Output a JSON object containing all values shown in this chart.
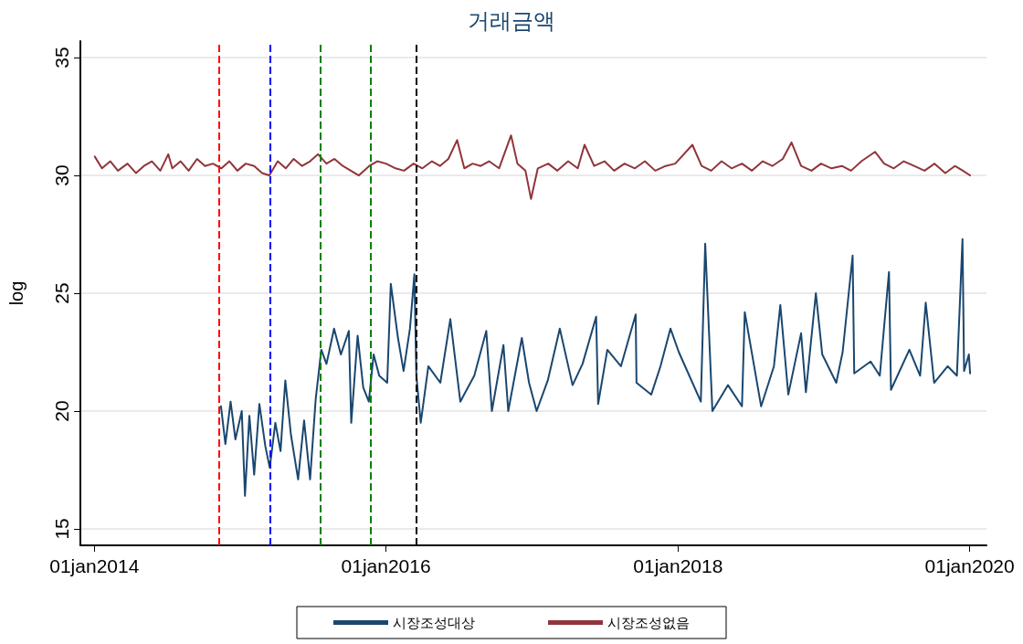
{
  "chart_data": {
    "type": "line",
    "title": "거래금액",
    "ylabel": "log",
    "legend": "bottom",
    "grid": "y",
    "marker": "none",
    "line_style": "solid",
    "xlim": [
      "2013-11-27",
      "2020-02-12"
    ],
    "ylim": [
      14.3,
      35.7
    ],
    "xticks": [
      {
        "value": "2014-01-01",
        "label": "01jan2014"
      },
      {
        "value": "2016-01-01",
        "label": "01jan2016"
      },
      {
        "value": "2018-01-01",
        "label": "01jan2018"
      },
      {
        "value": "2020-01-01",
        "label": "01jan2020"
      }
    ],
    "yticks": [
      15,
      20,
      25,
      30,
      35
    ],
    "ref_lines": [
      {
        "axis": "x",
        "value": "2014-11-10",
        "color": "#ff0000",
        "line_style": "dashed"
      },
      {
        "axis": "x",
        "value": "2015-03-16",
        "color": "#0000ff",
        "line_style": "dashed"
      },
      {
        "axis": "x",
        "value": "2015-07-21",
        "color": "#008000",
        "line_style": "dashed"
      },
      {
        "axis": "x",
        "value": "2015-11-23",
        "color": "#008000",
        "line_style": "dashed"
      },
      {
        "axis": "x",
        "value": "2016-03-16",
        "color": "#000000",
        "line_style": "dashed"
      }
    ],
    "series": [
      {
        "name": "시장조성대상",
        "color": "#1a476f",
        "x": [
          "2014-11-14",
          "2014-11-25",
          "2014-12-08",
          "2014-12-20",
          "2015-01-05",
          "2015-01-13",
          "2015-01-24",
          "2015-02-05",
          "2015-02-18",
          "2015-03-05",
          "2015-03-16",
          "2015-03-30",
          "2015-04-12",
          "2015-04-24",
          "2015-05-08",
          "2015-05-26",
          "2015-06-10",
          "2015-06-25",
          "2015-07-09",
          "2015-07-23",
          "2015-08-05",
          "2015-08-24",
          "2015-09-10",
          "2015-09-30",
          "2015-10-06",
          "2015-10-22",
          "2015-11-05",
          "2015-11-19",
          "2015-12-01",
          "2015-12-15",
          "2016-01-04",
          "2016-01-13",
          "2016-01-31",
          "2016-02-14",
          "2016-03-01",
          "2016-03-12",
          "2016-03-17",
          "2016-03-28",
          "2016-04-16",
          "2016-05-16",
          "2016-06-10",
          "2016-07-05",
          "2016-08-09",
          "2016-09-08",
          "2016-09-22",
          "2016-10-21",
          "2016-11-02",
          "2016-12-06",
          "2016-12-24",
          "2017-01-12",
          "2017-02-09",
          "2017-03-11",
          "2017-04-12",
          "2017-05-07",
          "2017-06-10",
          "2017-06-15",
          "2017-07-08",
          "2017-08-11",
          "2017-09-17",
          "2017-09-19",
          "2017-10-26",
          "2017-11-18",
          "2017-12-13",
          "2018-01-03",
          "2018-02-27",
          "2018-03-10",
          "2018-03-28",
          "2018-05-06",
          "2018-06-10",
          "2018-06-17",
          "2018-07-28",
          "2018-08-29",
          "2018-09-14",
          "2018-10-04",
          "2018-11-05",
          "2018-11-17",
          "2018-12-12",
          "2018-12-28",
          "2019-02-01",
          "2019-02-17",
          "2019-03-14",
          "2019-03-18",
          "2019-04-28",
          "2019-05-21",
          "2019-06-13",
          "2019-06-18",
          "2019-08-03",
          "2019-08-30",
          "2019-09-13",
          "2019-10-04",
          "2019-11-07",
          "2019-11-30",
          "2019-12-14",
          "2019-12-18",
          "2019-12-30",
          "2020-01-02"
        ],
        "values": [
          20.2,
          18.6,
          20.4,
          18.8,
          20.0,
          16.4,
          19.8,
          17.3,
          20.3,
          18.5,
          17.6,
          19.5,
          18.3,
          21.3,
          19.0,
          17.1,
          19.6,
          17.1,
          20.5,
          22.6,
          22.0,
          23.5,
          22.4,
          23.4,
          19.5,
          23.2,
          21.0,
          20.4,
          22.4,
          21.5,
          21.2,
          25.4,
          23.1,
          21.7,
          23.5,
          25.8,
          21.5,
          19.5,
          21.9,
          21.2,
          23.9,
          20.4,
          21.5,
          23.4,
          20.0,
          22.8,
          20.0,
          23.1,
          21.2,
          20.0,
          21.3,
          23.5,
          21.1,
          22.0,
          24.0,
          20.3,
          22.6,
          21.9,
          24.1,
          21.2,
          20.7,
          21.9,
          23.5,
          22.5,
          20.4,
          27.1,
          20.0,
          21.1,
          20.2,
          24.2,
          20.2,
          21.9,
          24.5,
          20.7,
          23.3,
          20.8,
          25.0,
          22.4,
          21.2,
          22.5,
          26.6,
          21.6,
          22.1,
          21.5,
          25.9,
          20.9,
          22.6,
          21.5,
          24.6,
          21.2,
          21.9,
          21.5,
          27.3,
          21.7,
          22.4,
          21.6
        ]
      },
      {
        "name": "시장조성없음",
        "color": "#90353b",
        "x": [
          "2014-01-02",
          "2014-01-20",
          "2014-02-10",
          "2014-03-01",
          "2014-03-25",
          "2014-04-15",
          "2014-05-05",
          "2014-05-25",
          "2014-06-15",
          "2014-07-05",
          "2014-07-15",
          "2014-08-05",
          "2014-08-25",
          "2014-09-15",
          "2014-10-05",
          "2014-10-25",
          "2014-11-15",
          "2014-12-05",
          "2014-12-25",
          "2015-01-15",
          "2015-02-05",
          "2015-02-25",
          "2015-03-15",
          "2015-04-05",
          "2015-04-25",
          "2015-05-15",
          "2015-06-05",
          "2015-06-25",
          "2015-07-15",
          "2015-08-05",
          "2015-08-25",
          "2015-09-15",
          "2015-10-05",
          "2015-10-25",
          "2015-11-20",
          "2015-12-10",
          "2016-01-01",
          "2016-01-25",
          "2016-02-15",
          "2016-03-10",
          "2016-04-01",
          "2016-04-25",
          "2016-05-15",
          "2016-06-05",
          "2016-06-27",
          "2016-07-15",
          "2016-08-05",
          "2016-08-25",
          "2016-09-15",
          "2016-10-10",
          "2016-11-09",
          "2016-11-25",
          "2016-12-15",
          "2016-12-29",
          "2017-01-15",
          "2017-02-10",
          "2017-03-05",
          "2017-04-01",
          "2017-04-25",
          "2017-05-12",
          "2017-06-05",
          "2017-07-01",
          "2017-07-25",
          "2017-08-20",
          "2017-09-15",
          "2017-10-10",
          "2017-11-05",
          "2017-12-01",
          "2017-12-25",
          "2018-02-06",
          "2018-03-01",
          "2018-03-25",
          "2018-04-20",
          "2018-05-15",
          "2018-06-10",
          "2018-07-05",
          "2018-08-01",
          "2018-08-25",
          "2018-09-20",
          "2018-10-12",
          "2018-11-05",
          "2018-12-01",
          "2018-12-25",
          "2019-01-20",
          "2019-02-15",
          "2019-03-10",
          "2019-04-05",
          "2019-05-09",
          "2019-06-01",
          "2019-06-25",
          "2019-07-20",
          "2019-08-15",
          "2019-09-10",
          "2019-10-05",
          "2019-11-01",
          "2019-11-25",
          "2019-12-15",
          "2020-01-02"
        ],
        "values": [
          30.8,
          30.3,
          30.6,
          30.2,
          30.5,
          30.1,
          30.4,
          30.6,
          30.2,
          30.9,
          30.3,
          30.6,
          30.2,
          30.7,
          30.4,
          30.5,
          30.3,
          30.6,
          30.2,
          30.5,
          30.4,
          30.1,
          30.0,
          30.6,
          30.3,
          30.7,
          30.4,
          30.6,
          30.9,
          30.5,
          30.7,
          30.4,
          30.2,
          30.0,
          30.4,
          30.6,
          30.5,
          30.3,
          30.2,
          30.5,
          30.3,
          30.6,
          30.4,
          30.7,
          31.5,
          30.3,
          30.5,
          30.4,
          30.6,
          30.3,
          31.7,
          30.5,
          30.2,
          29.0,
          30.3,
          30.5,
          30.2,
          30.6,
          30.3,
          31.3,
          30.4,
          30.6,
          30.2,
          30.5,
          30.3,
          30.6,
          30.2,
          30.4,
          30.5,
          31.3,
          30.4,
          30.2,
          30.6,
          30.3,
          30.5,
          30.2,
          30.6,
          30.4,
          30.7,
          31.4,
          30.4,
          30.2,
          30.5,
          30.3,
          30.4,
          30.2,
          30.6,
          31.0,
          30.5,
          30.3,
          30.6,
          30.4,
          30.2,
          30.5,
          30.1,
          30.4,
          30.2,
          30.0
        ]
      }
    ]
  }
}
